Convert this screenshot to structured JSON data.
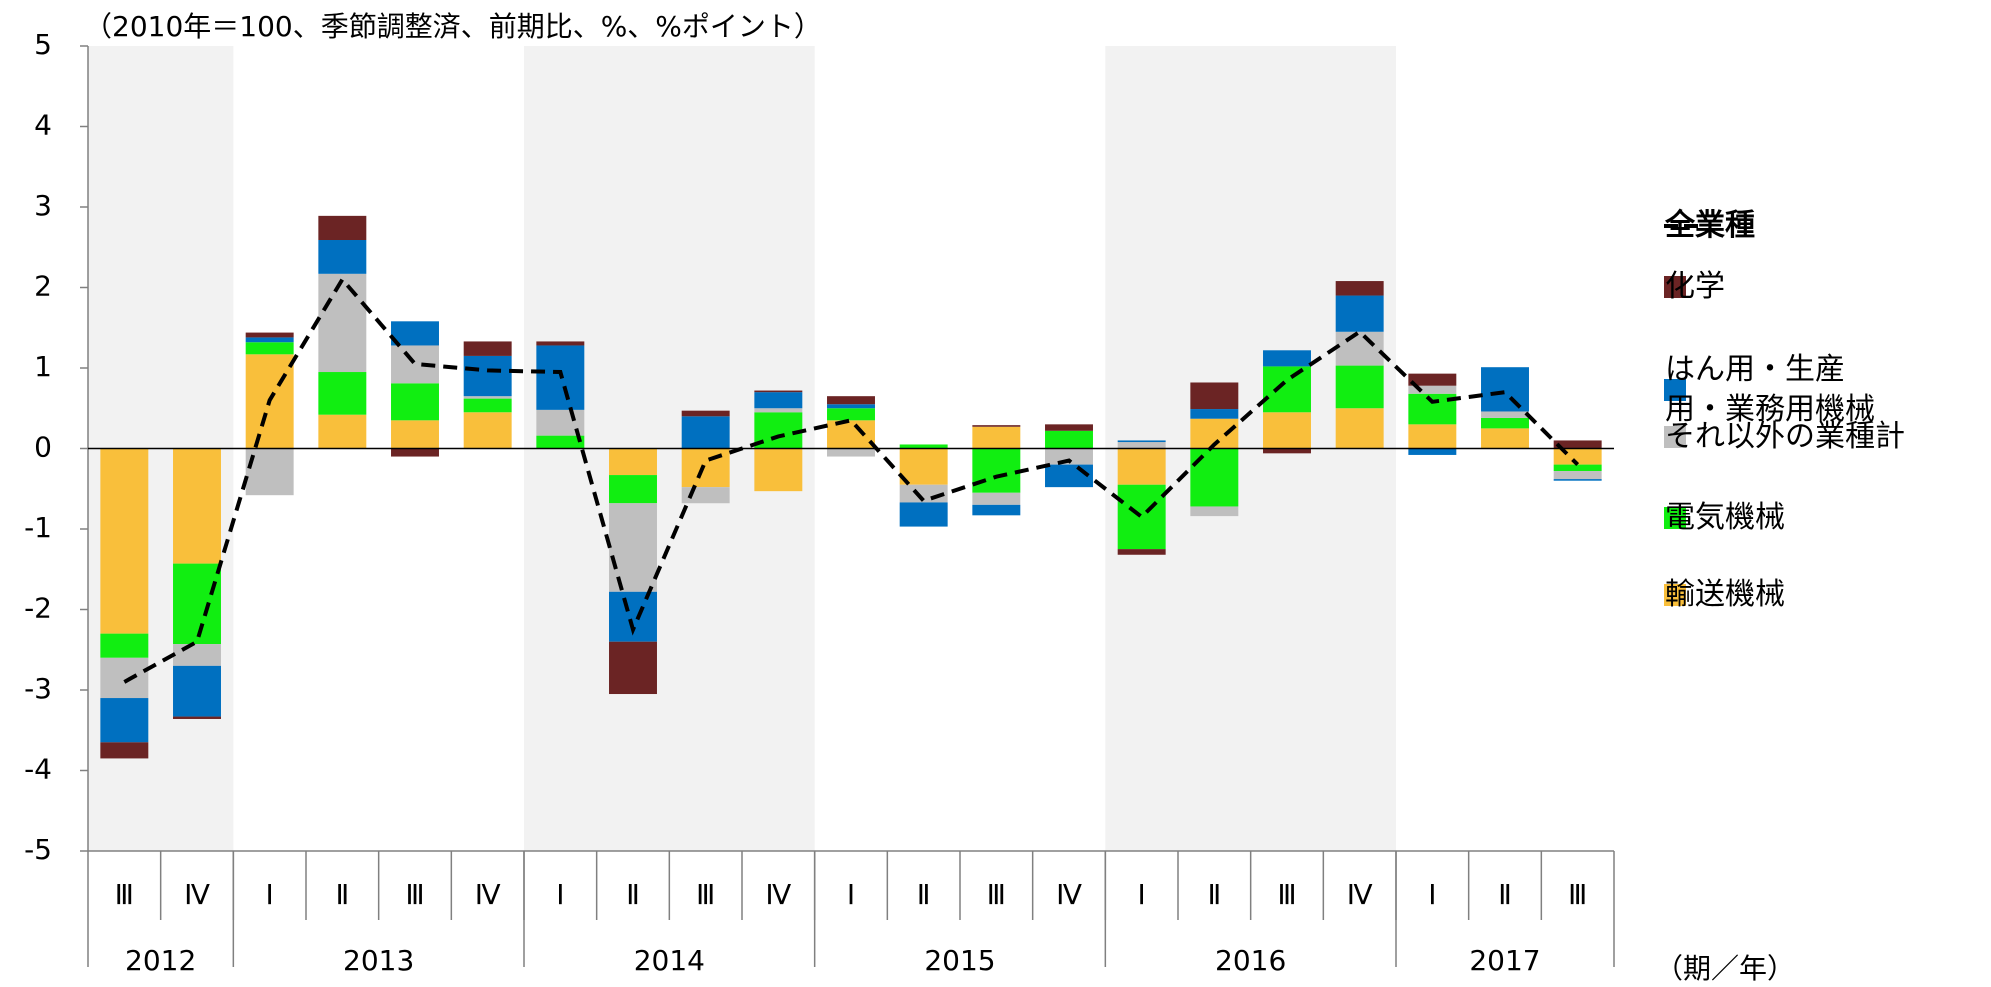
{
  "chart_data": {
    "type": "stacked-bar-line",
    "title": "（2010年＝100、季節調整済、前期比、%、%ポイント）",
    "x_unit": "（期／年）",
    "categories": [
      "Ⅲ",
      "Ⅳ",
      "Ⅰ",
      "Ⅱ",
      "Ⅲ",
      "Ⅳ",
      "Ⅰ",
      "Ⅱ",
      "Ⅲ",
      "Ⅳ",
      "Ⅰ",
      "Ⅱ",
      "Ⅲ",
      "Ⅳ",
      "Ⅰ",
      "Ⅱ",
      "Ⅲ",
      "Ⅳ",
      "Ⅰ",
      "Ⅱ",
      "Ⅲ"
    ],
    "year_groups": [
      {
        "label": "2012",
        "count": 2,
        "shaded": true
      },
      {
        "label": "2013",
        "count": 4,
        "shaded": false
      },
      {
        "label": "2014",
        "count": 4,
        "shaded": true
      },
      {
        "label": "2015",
        "count": 4,
        "shaded": false
      },
      {
        "label": "2016",
        "count": 4,
        "shaded": true
      },
      {
        "label": "2017",
        "count": 3,
        "shaded": false
      }
    ],
    "series": [
      {
        "name": "輸送機械",
        "color": "#f9bf3b",
        "values": [
          -2.3,
          -1.43,
          1.17,
          0.42,
          0.35,
          0.45,
          0,
          -0.33,
          -0.48,
          -0.53,
          0.35,
          -0.45,
          0.27,
          0,
          -0.45,
          0.37,
          0.45,
          0.5,
          0.3,
          0.25,
          -0.2
        ]
      },
      {
        "name": "電気機械",
        "color": "#11ee11",
        "values": [
          -0.3,
          -1.0,
          0.15,
          0.53,
          0.46,
          0.17,
          0.16,
          -0.35,
          0,
          0.45,
          0.15,
          0.05,
          -0.55,
          0.22,
          -0.8,
          -0.72,
          0.57,
          0.53,
          0.38,
          0.13,
          -0.08
        ]
      },
      {
        "name": "それ以外の業種計",
        "color": "#bfbfbf",
        "values": [
          -0.5,
          -0.27,
          -0.58,
          1.22,
          0.47,
          0.03,
          0.32,
          -1.1,
          -0.2,
          0.05,
          -0.1,
          -0.22,
          -0.15,
          -0.2,
          0.08,
          -0.12,
          0,
          0.42,
          0.1,
          0.08,
          -0.1
        ]
      },
      {
        "name": "はん用・生産\n用・業務用機械",
        "color": "#0070c0",
        "values": [
          -0.55,
          -0.63,
          0.06,
          0.42,
          0.3,
          0.5,
          0.8,
          -0.62,
          0.4,
          0.2,
          0.05,
          -0.3,
          -0.13,
          -0.28,
          0.02,
          0.12,
          0.2,
          0.45,
          -0.08,
          0.55,
          -0.02
        ]
      },
      {
        "name": "化学",
        "color": "#6b2424",
        "values": [
          -0.2,
          -0.03,
          0.06,
          0.3,
          -0.1,
          0.18,
          0.05,
          -0.65,
          0.07,
          0.02,
          0.1,
          0,
          0.02,
          0.08,
          -0.07,
          0.33,
          -0.06,
          0.18,
          0.15,
          0,
          0.1
        ]
      }
    ],
    "line": {
      "name": "全業種",
      "color": "#000000",
      "values": [
        -2.9,
        -2.4,
        0.6,
        2.1,
        1.05,
        0.97,
        0.95,
        -2.25,
        -0.15,
        0.15,
        0.35,
        -0.65,
        -0.35,
        -0.15,
        -0.85,
        0.05,
        0.85,
        1.45,
        0.58,
        0.7,
        -0.2
      ]
    },
    "ylim": [
      -5,
      5
    ],
    "yticks": [
      -5,
      -4,
      -3,
      -2,
      -1,
      0,
      1,
      2,
      3,
      4,
      5
    ],
    "shade_color": "#f2f2f2"
  }
}
